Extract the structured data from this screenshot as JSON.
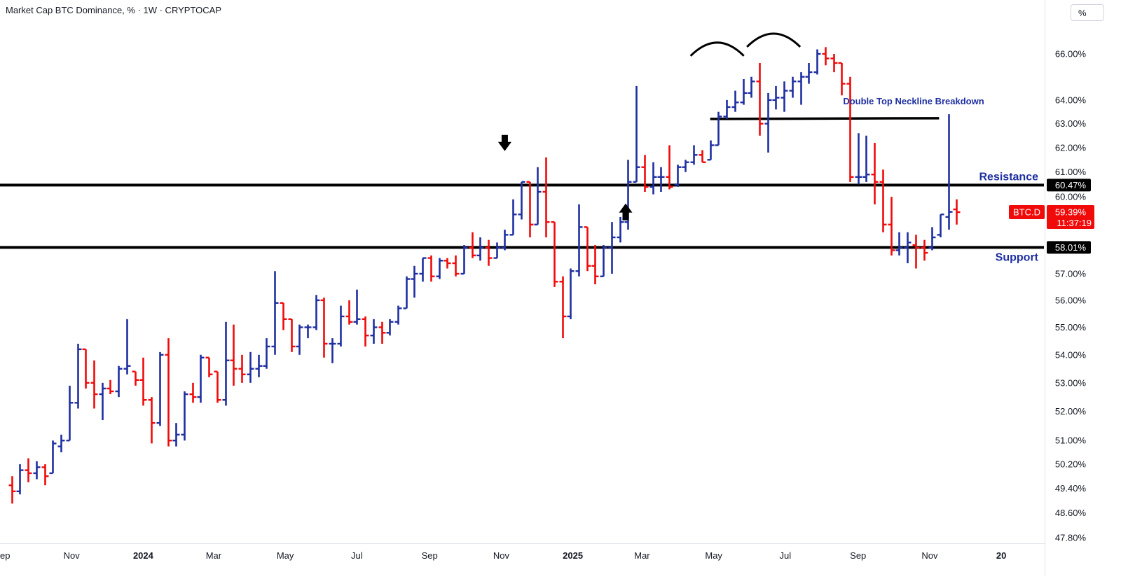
{
  "chart_title": "Market Cap BTC Dominance, % · 1W · CRYPTOCAP",
  "scale_button_label": "%",
  "chart_data": {
    "type": "ohlc",
    "title": "Market Cap BTC Dominance, % · 1W · CRYPTOCAP",
    "symbol": "BTC.D",
    "interval": "1W",
    "source": "CRYPTOCAP",
    "scale": "log",
    "ylim": [
      47.6,
      67.6
    ],
    "xlim": [
      "2023-09-11",
      "2025-12-31"
    ],
    "grid": false,
    "up_color": "#1e2fa0",
    "down_color": "#f00a0a",
    "y_ticks": [
      "66.00%",
      "64.00%",
      "63.00%",
      "62.00%",
      "61.00%",
      "60.00%",
      "57.00%",
      "56.00%",
      "55.00%",
      "54.00%",
      "53.00%",
      "52.00%",
      "51.00%",
      "50.20%",
      "49.40%",
      "48.60%",
      "47.80%"
    ],
    "x_ticks": [
      {
        "label": "ep",
        "date": "2023-09-01",
        "bold": false
      },
      {
        "label": "Nov",
        "date": "2023-11-01",
        "bold": false
      },
      {
        "label": "2024",
        "date": "2024-01-01",
        "bold": true
      },
      {
        "label": "Mar",
        "date": "2024-03-01",
        "bold": false
      },
      {
        "label": "May",
        "date": "2024-05-01",
        "bold": false
      },
      {
        "label": "Jul",
        "date": "2024-07-01",
        "bold": false
      },
      {
        "label": "Sep",
        "date": "2024-09-01",
        "bold": false
      },
      {
        "label": "Nov",
        "date": "2024-11-01",
        "bold": false
      },
      {
        "label": "2025",
        "date": "2025-01-01",
        "bold": true
      },
      {
        "label": "Mar",
        "date": "2025-03-01",
        "bold": false
      },
      {
        "label": "May",
        "date": "2025-05-01",
        "bold": false
      },
      {
        "label": "Jul",
        "date": "2025-07-01",
        "bold": false
      },
      {
        "label": "Sep",
        "date": "2025-09-01",
        "bold": false
      },
      {
        "label": "Nov",
        "date": "2025-11-01",
        "bold": false
      },
      {
        "label": "20",
        "date": "2026-01-01",
        "bold": true
      }
    ],
    "levels": [
      {
        "name": "resistance",
        "label": "Resistance",
        "value": 60.47,
        "badge": "60.47%"
      },
      {
        "name": "support",
        "label": "Support",
        "value": 58.01,
        "badge": "58.01%"
      }
    ],
    "neckline": {
      "label": "Double Top Neckline Breakdown",
      "value": 63.2,
      "from": "2025-04-28",
      "to": "2025-11-09"
    },
    "double_top_arcs": [
      {
        "center": "2025-05-04",
        "peak": 66.5
      },
      {
        "center": "2025-06-21",
        "peak": 66.9
      }
    ],
    "arrows": [
      {
        "direction": "down",
        "date": "2024-11-04",
        "value": 62.15
      },
      {
        "direction": "up",
        "date": "2025-02-15",
        "value": 59.4
      }
    ],
    "last_price": {
      "symbol": "BTC.D",
      "value": "59.39%",
      "countdown": "11:37:19"
    },
    "bars": [
      {
        "date": "2023-09-11",
        "o": 49.5,
        "h": 49.8,
        "l": 48.9,
        "c": 49.3
      },
      {
        "date": "2023-09-18",
        "o": 49.3,
        "h": 50.2,
        "l": 49.2,
        "c": 50.0
      },
      {
        "date": "2023-09-25",
        "o": 50.0,
        "h": 50.4,
        "l": 49.6,
        "c": 49.9
      },
      {
        "date": "2023-10-02",
        "o": 49.9,
        "h": 50.3,
        "l": 49.7,
        "c": 50.1
      },
      {
        "date": "2023-10-09",
        "o": 50.1,
        "h": 50.2,
        "l": 49.5,
        "c": 49.8
      },
      {
        "date": "2023-10-16",
        "o": 49.9,
        "h": 51.0,
        "l": 49.9,
        "c": 50.9
      },
      {
        "date": "2023-10-23",
        "o": 50.8,
        "h": 51.2,
        "l": 50.6,
        "c": 51.0
      },
      {
        "date": "2023-10-30",
        "o": 51.0,
        "h": 52.9,
        "l": 51.0,
        "c": 52.3
      },
      {
        "date": "2023-11-06",
        "o": 52.3,
        "h": 54.4,
        "l": 52.1,
        "c": 54.2
      },
      {
        "date": "2023-11-13",
        "o": 54.2,
        "h": 54.2,
        "l": 52.8,
        "c": 53.0
      },
      {
        "date": "2023-11-20",
        "o": 53.0,
        "h": 53.8,
        "l": 52.1,
        "c": 52.6
      },
      {
        "date": "2023-11-27",
        "o": 52.6,
        "h": 53.0,
        "l": 51.7,
        "c": 52.8
      },
      {
        "date": "2023-12-04",
        "o": 52.8,
        "h": 53.1,
        "l": 52.6,
        "c": 52.7
      },
      {
        "date": "2023-12-11",
        "o": 52.7,
        "h": 53.6,
        "l": 52.5,
        "c": 53.5
      },
      {
        "date": "2023-12-18",
        "o": 53.5,
        "h": 55.3,
        "l": 53.3,
        "c": 53.6
      },
      {
        "date": "2023-12-25",
        "o": 53.4,
        "h": 53.4,
        "l": 52.9,
        "c": 53.1
      },
      {
        "date": "2024-01-01",
        "o": 53.1,
        "h": 53.9,
        "l": 52.2,
        "c": 52.4
      },
      {
        "date": "2024-01-08",
        "o": 52.4,
        "h": 52.5,
        "l": 50.9,
        "c": 51.6
      },
      {
        "date": "2024-01-15",
        "o": 51.6,
        "h": 54.1,
        "l": 51.5,
        "c": 54.0
      },
      {
        "date": "2024-01-22",
        "o": 54.0,
        "h": 54.6,
        "l": 50.8,
        "c": 51.0
      },
      {
        "date": "2024-01-29",
        "o": 51.0,
        "h": 51.6,
        "l": 50.8,
        "c": 51.2
      },
      {
        "date": "2024-02-05",
        "o": 51.2,
        "h": 52.7,
        "l": 51.0,
        "c": 52.6
      },
      {
        "date": "2024-02-12",
        "o": 52.6,
        "h": 53.0,
        "l": 52.3,
        "c": 52.5
      },
      {
        "date": "2024-02-19",
        "o": 52.5,
        "h": 54.0,
        "l": 52.3,
        "c": 53.9
      },
      {
        "date": "2024-02-26",
        "o": 53.9,
        "h": 53.9,
        "l": 53.2,
        "c": 53.3
      },
      {
        "date": "2024-03-04",
        "o": 53.4,
        "h": 53.4,
        "l": 52.3,
        "c": 52.4
      },
      {
        "date": "2024-03-11",
        "o": 52.4,
        "h": 55.2,
        "l": 52.2,
        "c": 53.8
      },
      {
        "date": "2024-03-18",
        "o": 53.8,
        "h": 55.1,
        "l": 52.9,
        "c": 53.5
      },
      {
        "date": "2024-03-25",
        "o": 53.5,
        "h": 54.0,
        "l": 53.0,
        "c": 53.3
      },
      {
        "date": "2024-04-01",
        "o": 53.3,
        "h": 54.1,
        "l": 53.0,
        "c": 53.5
      },
      {
        "date": "2024-04-08",
        "o": 53.5,
        "h": 54.0,
        "l": 53.2,
        "c": 53.6
      },
      {
        "date": "2024-04-15",
        "o": 53.6,
        "h": 54.6,
        "l": 53.5,
        "c": 54.3
      },
      {
        "date": "2024-04-22",
        "o": 54.3,
        "h": 57.1,
        "l": 54.0,
        "c": 55.9
      },
      {
        "date": "2024-04-29",
        "o": 55.9,
        "h": 55.9,
        "l": 54.9,
        "c": 55.3
      },
      {
        "date": "2024-05-06",
        "o": 55.3,
        "h": 55.3,
        "l": 54.1,
        "c": 54.3
      },
      {
        "date": "2024-05-13",
        "o": 54.3,
        "h": 55.1,
        "l": 54.0,
        "c": 55.0
      },
      {
        "date": "2024-05-20",
        "o": 55.0,
        "h": 55.1,
        "l": 54.6,
        "c": 55.0
      },
      {
        "date": "2024-05-27",
        "o": 55.0,
        "h": 56.2,
        "l": 54.9,
        "c": 56.0
      },
      {
        "date": "2024-06-03",
        "o": 56.0,
        "h": 56.1,
        "l": 53.9,
        "c": 54.4
      },
      {
        "date": "2024-06-10",
        "o": 54.4,
        "h": 54.6,
        "l": 53.7,
        "c": 54.4
      },
      {
        "date": "2024-06-17",
        "o": 54.4,
        "h": 55.8,
        "l": 54.3,
        "c": 55.4
      },
      {
        "date": "2024-06-24",
        "o": 55.4,
        "h": 56.0,
        "l": 55.1,
        "c": 55.2
      },
      {
        "date": "2024-07-01",
        "o": 55.2,
        "h": 56.4,
        "l": 55.1,
        "c": 55.3
      },
      {
        "date": "2024-07-08",
        "o": 55.3,
        "h": 55.4,
        "l": 54.3,
        "c": 54.7
      },
      {
        "date": "2024-07-15",
        "o": 54.7,
        "h": 55.3,
        "l": 54.4,
        "c": 55.0
      },
      {
        "date": "2024-07-22",
        "o": 55.0,
        "h": 55.2,
        "l": 54.4,
        "c": 54.8
      },
      {
        "date": "2024-07-29",
        "o": 54.8,
        "h": 55.3,
        "l": 54.7,
        "c": 55.2
      },
      {
        "date": "2024-08-05",
        "o": 55.2,
        "h": 55.8,
        "l": 55.1,
        "c": 55.7
      },
      {
        "date": "2024-08-12",
        "o": 55.7,
        "h": 56.9,
        "l": 55.7,
        "c": 56.8
      },
      {
        "date": "2024-08-19",
        "o": 56.8,
        "h": 57.3,
        "l": 56.1,
        "c": 57.0
      },
      {
        "date": "2024-08-26",
        "o": 57.0,
        "h": 57.6,
        "l": 56.7,
        "c": 57.6
      },
      {
        "date": "2024-09-02",
        "o": 57.6,
        "h": 57.7,
        "l": 56.7,
        "c": 56.9
      },
      {
        "date": "2024-09-09",
        "o": 56.9,
        "h": 57.6,
        "l": 56.8,
        "c": 57.5
      },
      {
        "date": "2024-09-16",
        "o": 57.5,
        "h": 57.6,
        "l": 57.2,
        "c": 57.4
      },
      {
        "date": "2024-09-23",
        "o": 57.4,
        "h": 57.7,
        "l": 56.9,
        "c": 57.0
      },
      {
        "date": "2024-09-30",
        "o": 57.0,
        "h": 58.1,
        "l": 57.0,
        "c": 58.0
      },
      {
        "date": "2024-10-07",
        "o": 58.0,
        "h": 58.6,
        "l": 57.6,
        "c": 57.7
      },
      {
        "date": "2024-10-14",
        "o": 57.7,
        "h": 58.4,
        "l": 57.5,
        "c": 58.0
      },
      {
        "date": "2024-10-21",
        "o": 58.0,
        "h": 58.3,
        "l": 57.3,
        "c": 57.6
      },
      {
        "date": "2024-10-28",
        "o": 57.6,
        "h": 58.2,
        "l": 57.6,
        "c": 58.0
      },
      {
        "date": "2024-11-04",
        "o": 58.0,
        "h": 58.7,
        "l": 57.9,
        "c": 58.5
      },
      {
        "date": "2024-11-11",
        "o": 58.5,
        "h": 59.9,
        "l": 58.5,
        "c": 59.3
      },
      {
        "date": "2024-11-18",
        "o": 59.3,
        "h": 60.6,
        "l": 59.1,
        "c": 60.6
      },
      {
        "date": "2024-11-25",
        "o": 60.6,
        "h": 60.6,
        "l": 58.4,
        "c": 58.9
      },
      {
        "date": "2024-12-02",
        "o": 58.9,
        "h": 61.2,
        "l": 58.9,
        "c": 60.2
      },
      {
        "date": "2024-12-09",
        "o": 60.2,
        "h": 61.6,
        "l": 58.4,
        "c": 59.0
      },
      {
        "date": "2024-12-16",
        "o": 59.0,
        "h": 59.0,
        "l": 56.5,
        "c": 56.7
      },
      {
        "date": "2024-12-23",
        "o": 56.7,
        "h": 56.9,
        "l": 54.6,
        "c": 55.4
      },
      {
        "date": "2024-12-30",
        "o": 55.4,
        "h": 57.2,
        "l": 55.3,
        "c": 57.1
      },
      {
        "date": "2025-01-06",
        "o": 57.1,
        "h": 59.7,
        "l": 56.9,
        "c": 58.8
      },
      {
        "date": "2025-01-13",
        "o": 58.8,
        "h": 58.8,
        "l": 57.1,
        "c": 57.3
      },
      {
        "date": "2025-01-20",
        "o": 57.3,
        "h": 58.1,
        "l": 56.6,
        "c": 56.9
      },
      {
        "date": "2025-01-27",
        "o": 56.9,
        "h": 58.1,
        "l": 56.9,
        "c": 58.0
      },
      {
        "date": "2025-02-03",
        "o": 58.0,
        "h": 59.0,
        "l": 57.0,
        "c": 58.4
      },
      {
        "date": "2025-02-10",
        "o": 58.4,
        "h": 59.2,
        "l": 58.2,
        "c": 59.0
      },
      {
        "date": "2025-02-17",
        "o": 59.0,
        "h": 61.5,
        "l": 58.7,
        "c": 60.6
      },
      {
        "date": "2025-02-24",
        "o": 60.6,
        "h": 64.6,
        "l": 60.6,
        "c": 61.2
      },
      {
        "date": "2025-03-03",
        "o": 61.2,
        "h": 61.7,
        "l": 60.2,
        "c": 60.4
      },
      {
        "date": "2025-03-10",
        "o": 60.4,
        "h": 61.4,
        "l": 60.1,
        "c": 60.8
      },
      {
        "date": "2025-03-17",
        "o": 60.8,
        "h": 61.2,
        "l": 60.2,
        "c": 60.8
      },
      {
        "date": "2025-03-24",
        "o": 60.8,
        "h": 62.1,
        "l": 60.3,
        "c": 60.4
      },
      {
        "date": "2025-03-31",
        "o": 60.5,
        "h": 61.3,
        "l": 60.4,
        "c": 61.2
      },
      {
        "date": "2025-04-07",
        "o": 61.2,
        "h": 61.5,
        "l": 61.0,
        "c": 61.4
      },
      {
        "date": "2025-04-14",
        "o": 61.4,
        "h": 62.1,
        "l": 61.3,
        "c": 61.7
      },
      {
        "date": "2025-04-21",
        "o": 61.7,
        "h": 61.9,
        "l": 61.4,
        "c": 61.4
      },
      {
        "date": "2025-04-28",
        "o": 61.5,
        "h": 62.3,
        "l": 61.5,
        "c": 62.1
      },
      {
        "date": "2025-05-05",
        "o": 62.1,
        "h": 63.5,
        "l": 62.1,
        "c": 63.3
      },
      {
        "date": "2025-05-12",
        "o": 63.3,
        "h": 64.0,
        "l": 63.2,
        "c": 63.7
      },
      {
        "date": "2025-05-19",
        "o": 63.7,
        "h": 64.4,
        "l": 63.5,
        "c": 63.9
      },
      {
        "date": "2025-05-26",
        "o": 63.9,
        "h": 64.9,
        "l": 63.8,
        "c": 64.3
      },
      {
        "date": "2025-06-02",
        "o": 64.3,
        "h": 65.0,
        "l": 64.1,
        "c": 64.8
      },
      {
        "date": "2025-06-09",
        "o": 64.8,
        "h": 65.6,
        "l": 62.5,
        "c": 63.0
      },
      {
        "date": "2025-06-16",
        "o": 63.0,
        "h": 64.3,
        "l": 61.8,
        "c": 64.0
      },
      {
        "date": "2025-06-23",
        "o": 64.0,
        "h": 64.6,
        "l": 63.6,
        "c": 64.1
      },
      {
        "date": "2025-06-30",
        "o": 64.1,
        "h": 64.8,
        "l": 63.5,
        "c": 64.4
      },
      {
        "date": "2025-07-07",
        "o": 64.4,
        "h": 65.0,
        "l": 64.1,
        "c": 64.8
      },
      {
        "date": "2025-07-14",
        "o": 64.8,
        "h": 65.2,
        "l": 63.8,
        "c": 65.0
      },
      {
        "date": "2025-07-21",
        "o": 65.0,
        "h": 65.6,
        "l": 64.7,
        "c": 65.2
      },
      {
        "date": "2025-07-28",
        "o": 65.2,
        "h": 66.2,
        "l": 65.1,
        "c": 66.0
      },
      {
        "date": "2025-08-04",
        "o": 66.0,
        "h": 66.3,
        "l": 65.5,
        "c": 65.8
      },
      {
        "date": "2025-08-11",
        "o": 65.8,
        "h": 66.0,
        "l": 65.2,
        "c": 65.6
      },
      {
        "date": "2025-08-18",
        "o": 65.6,
        "h": 65.6,
        "l": 64.2,
        "c": 64.7
      },
      {
        "date": "2025-08-25",
        "o": 64.7,
        "h": 65.0,
        "l": 60.6,
        "c": 60.8
      },
      {
        "date": "2025-09-01",
        "o": 60.8,
        "h": 62.6,
        "l": 60.5,
        "c": 60.8
      },
      {
        "date": "2025-09-08",
        "o": 60.8,
        "h": 62.5,
        "l": 60.6,
        "c": 60.9
      },
      {
        "date": "2025-09-15",
        "o": 60.9,
        "h": 62.2,
        "l": 59.7,
        "c": 60.6
      },
      {
        "date": "2025-09-22",
        "o": 60.6,
        "h": 61.1,
        "l": 58.6,
        "c": 58.9
      },
      {
        "date": "2025-09-29",
        "o": 58.9,
        "h": 60.0,
        "l": 57.7,
        "c": 57.9
      },
      {
        "date": "2025-10-06",
        "o": 57.9,
        "h": 58.6,
        "l": 57.7,
        "c": 58.0
      },
      {
        "date": "2025-10-13",
        "o": 58.0,
        "h": 58.6,
        "l": 57.4,
        "c": 58.2
      },
      {
        "date": "2025-10-20",
        "o": 58.1,
        "h": 58.5,
        "l": 57.2,
        "c": 58.0
      },
      {
        "date": "2025-10-27",
        "o": 58.0,
        "h": 58.3,
        "l": 57.5,
        "c": 57.8
      },
      {
        "date": "2025-11-03",
        "o": 58.0,
        "h": 58.8,
        "l": 57.9,
        "c": 58.4
      },
      {
        "date": "2025-11-10",
        "o": 58.5,
        "h": 59.3,
        "l": 58.4,
        "c": 59.3
      },
      {
        "date": "2025-11-17",
        "o": 59.2,
        "h": 63.4,
        "l": 58.7,
        "c": 59.4
      },
      {
        "date": "2025-11-24",
        "o": 59.5,
        "h": 59.9,
        "l": 58.9,
        "c": 59.39
      }
    ]
  }
}
